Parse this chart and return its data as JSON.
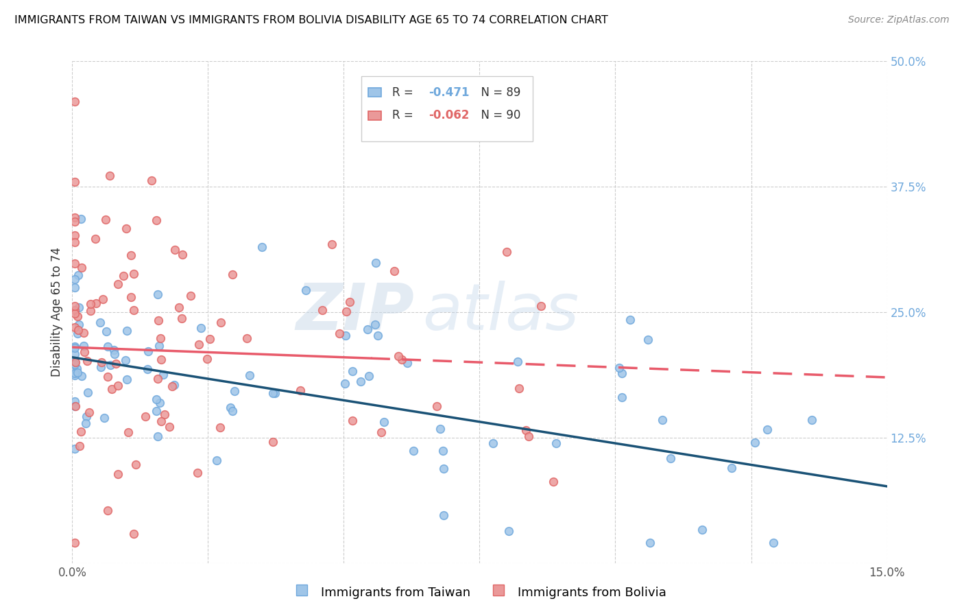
{
  "title": "IMMIGRANTS FROM TAIWAN VS IMMIGRANTS FROM BOLIVIA DISABILITY AGE 65 TO 74 CORRELATION CHART",
  "source": "Source: ZipAtlas.com",
  "ylabel": "Disability Age 65 to 74",
  "legend_taiwan": "Immigrants from Taiwan",
  "legend_bolivia": "Immigrants from Bolivia",
  "R_taiwan": -0.471,
  "N_taiwan": 89,
  "R_bolivia": -0.062,
  "N_bolivia": 90,
  "color_taiwan": "#9fc5e8",
  "color_bolivia": "#ea9999",
  "color_taiwan_edge": "#6fa8dc",
  "color_bolivia_edge": "#e06666",
  "trend_taiwan_color": "#1a5276",
  "trend_bolivia_color": "#e85a6a",
  "xlim": [
    0.0,
    0.15
  ],
  "ylim": [
    0.0,
    0.5
  ],
  "background_color": "#ffffff",
  "grid_color": "#cccccc",
  "title_color": "#000000",
  "right_axis_color": "#6fa8dc",
  "marker_size": 70,
  "watermark_color": "#b8cfe8",
  "watermark_alpha": 0.4
}
